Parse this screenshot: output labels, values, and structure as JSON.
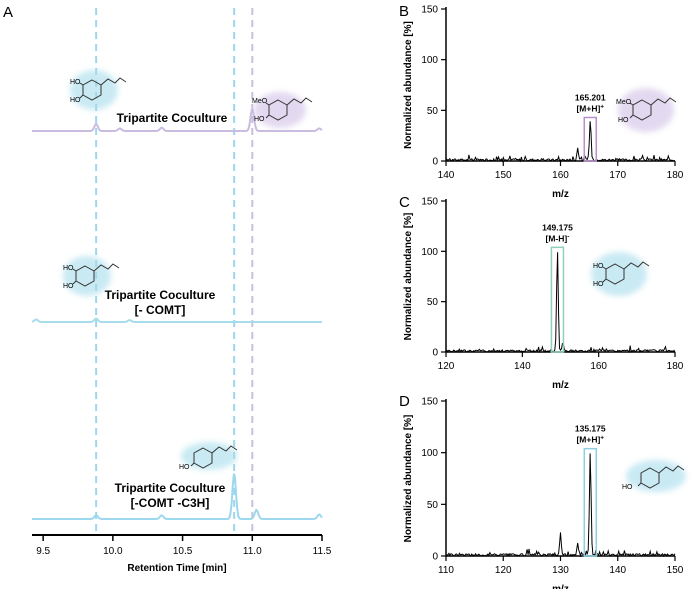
{
  "chart_data": [
    {
      "panel": "A",
      "type": "line",
      "title": "",
      "xlabel": "Retention Time [min]",
      "ylabel": "",
      "xlim": [
        9.42,
        11.5
      ],
      "xticks": [
        "9.5",
        "10.0",
        "10.5",
        "11.0",
        "11.5"
      ],
      "xtick_values": [
        9.5,
        10.0,
        10.5,
        11.0,
        11.5
      ],
      "reference_lines": [
        {
          "x": 9.88,
          "color": "#9fd6ec"
        },
        {
          "x": 10.87,
          "color": "#9fd6ec"
        },
        {
          "x": 11.0,
          "color": "#c9bfdf"
        }
      ],
      "series": [
        {
          "name": "Tripartite Coculture",
          "label_lines": [
            "Tripartite Coculture"
          ],
          "color": "#c9bce0",
          "peaks": [
            [
              9.88,
              0.32
            ],
            [
              10.05,
              0.12
            ],
            [
              10.35,
              0.15
            ],
            [
              11.0,
              1.0
            ],
            [
              11.48,
              0.12
            ]
          ],
          "molecules": [
            "HO",
            "HO",
            "MeO",
            "HO"
          ]
        },
        {
          "name": "Tripartite Coculture [- COMT]",
          "label_lines": [
            "Tripartite Coculture",
            "[- COMT]"
          ],
          "color": "#a6dcec",
          "peaks": [
            [
              9.45,
              0.25
            ],
            [
              9.88,
              0.35
            ],
            [
              10.12,
              0.18
            ]
          ],
          "molecules": [
            "HO",
            "HO"
          ]
        },
        {
          "name": "Tripartite Coculture [-COMT -C3H]",
          "label_lines": [
            "Tripartite Coculture",
            "[-COMT -C3H]"
          ],
          "color": "#9dd8ee",
          "peaks": [
            [
              9.88,
              0.08
            ],
            [
              10.35,
              0.08
            ],
            [
              10.87,
              1.0
            ],
            [
              11.03,
              0.2
            ],
            [
              11.48,
              0.1
            ]
          ],
          "molecules": [
            "HO"
          ]
        }
      ]
    },
    {
      "panel": "B",
      "type": "line",
      "xlabel": "m/z",
      "ylabel": "Normalized abundance [%]",
      "xlim": [
        140,
        180
      ],
      "ylim": [
        0,
        150
      ],
      "xticks": [
        140,
        150,
        160,
        170,
        180
      ],
      "yticks": [
        0,
        50,
        100,
        150
      ],
      "peaks": [
        [
          163,
          12
        ],
        [
          165.2,
          39
        ]
      ],
      "annotation": {
        "value": "165.201",
        "ion": "[M+H]",
        "charge": "+",
        "x": 165.2
      },
      "box_color": "#b98fce",
      "molecules": [
        "MeO",
        "HO"
      ]
    },
    {
      "panel": "C",
      "type": "line",
      "xlabel": "m/z",
      "ylabel": "Normalized abundance [%]",
      "xlim": [
        120,
        180
      ],
      "ylim": [
        0,
        150
      ],
      "xticks": [
        120,
        140,
        160,
        180
      ],
      "yticks": [
        0,
        50,
        100,
        150
      ],
      "peaks": [
        [
          149.2,
          100
        ],
        [
          150.6,
          8
        ]
      ],
      "annotation": {
        "value": "149.175",
        "ion": "[M-H]",
        "charge": "-",
        "x": 149.2
      },
      "box_color": "#8fd0b8",
      "molecules": [
        "HO",
        "HO"
      ]
    },
    {
      "panel": "D",
      "type": "line",
      "xlabel": "m/z",
      "ylabel": "Normalized abundance [%]",
      "xlim": [
        110,
        150
      ],
      "ylim": [
        0,
        150
      ],
      "xticks": [
        110,
        120,
        130,
        140,
        150
      ],
      "yticks": [
        0,
        50,
        100,
        150
      ],
      "peaks": [
        [
          130,
          18
        ],
        [
          133,
          12
        ],
        [
          135.2,
          100
        ]
      ],
      "annotation": {
        "value": "135.175",
        "ion": "[M+H]",
        "charge": "+",
        "x": 135.2
      },
      "box_color": "#8fcfe6",
      "molecules": [
        "HO"
      ]
    }
  ]
}
